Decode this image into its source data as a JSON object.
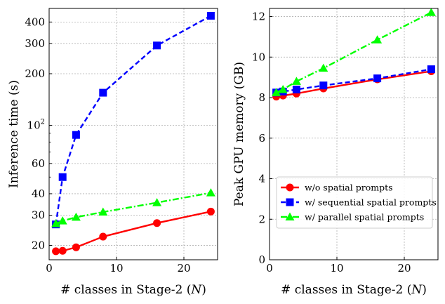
{
  "chart_data": [
    {
      "type": "line",
      "xlabel": "# classes in Stage-2 (N)",
      "ylabel": "Inference time (s)",
      "yscale": "log",
      "xlim": [
        0,
        25
      ],
      "ylim": [
        16.5,
        480
      ],
      "x_ticks": [
        0,
        10,
        20
      ],
      "x_tick_labels": [
        "0",
        "10",
        "20"
      ],
      "y_ticks": [
        20,
        30,
        40,
        60,
        100,
        200,
        300,
        400
      ],
      "y_tick_labels": [
        "20",
        "30",
        "40",
        "60",
        "10²",
        "200",
        "300",
        "400"
      ],
      "grid": true,
      "series": [
        {
          "name": "w/o spatial prompts",
          "color": "#ff0000",
          "marker": "circle",
          "linestyle": "solid",
          "x": [
            1,
            2,
            4,
            8,
            16,
            24
          ],
          "y": [
            18.5,
            18.6,
            19.5,
            22.5,
            27,
            31.5
          ]
        },
        {
          "name": "w/ sequential spatial prompts",
          "color": "#0000ff",
          "marker": "square",
          "linestyle": "dashed",
          "x": [
            1,
            2,
            4,
            8,
            16,
            24
          ],
          "y": [
            26.5,
            50,
            88,
            155,
            292,
            435
          ]
        },
        {
          "name": "w/ parallel spatial prompts",
          "color": "#00ff00",
          "marker": "triangle",
          "linestyle": "dashdot",
          "x": [
            1,
            2,
            4,
            8,
            16,
            24
          ],
          "y": [
            26.8,
            27.8,
            29.2,
            31.3,
            35.5,
            40.5
          ]
        }
      ]
    },
    {
      "type": "line",
      "xlabel": "# classes in Stage-2 (N)",
      "ylabel": "Peak GPU memory (GB)",
      "yscale": "linear",
      "xlim": [
        0,
        25
      ],
      "ylim": [
        0,
        12.4
      ],
      "x_ticks": [
        0,
        10,
        20
      ],
      "x_tick_labels": [
        "0",
        "10",
        "20"
      ],
      "y_ticks": [
        0,
        2,
        4,
        6,
        8,
        10,
        12
      ],
      "y_tick_labels": [
        "0",
        "2",
        "4",
        "6",
        "8",
        "10",
        "12"
      ],
      "grid": true,
      "legend_position": "lower-right",
      "series": [
        {
          "name": "w/o spatial prompts",
          "color": "#ff0000",
          "marker": "circle",
          "linestyle": "solid",
          "x": [
            1,
            2,
            4,
            8,
            16,
            24
          ],
          "y": [
            8.05,
            8.1,
            8.2,
            8.45,
            8.9,
            9.3
          ]
        },
        {
          "name": "w/ sequential spatial prompts",
          "color": "#0000ff",
          "marker": "square",
          "linestyle": "dashed",
          "x": [
            1,
            2,
            4,
            8,
            16,
            24
          ],
          "y": [
            8.25,
            8.3,
            8.4,
            8.6,
            8.95,
            9.4
          ]
        },
        {
          "name": "w/ parallel spatial prompts",
          "color": "#00ff00",
          "marker": "triangle",
          "linestyle": "dashdot",
          "x": [
            1,
            2,
            4,
            8,
            16,
            24
          ],
          "y": [
            8.25,
            8.4,
            8.8,
            9.45,
            10.85,
            12.2
          ]
        }
      ]
    }
  ]
}
